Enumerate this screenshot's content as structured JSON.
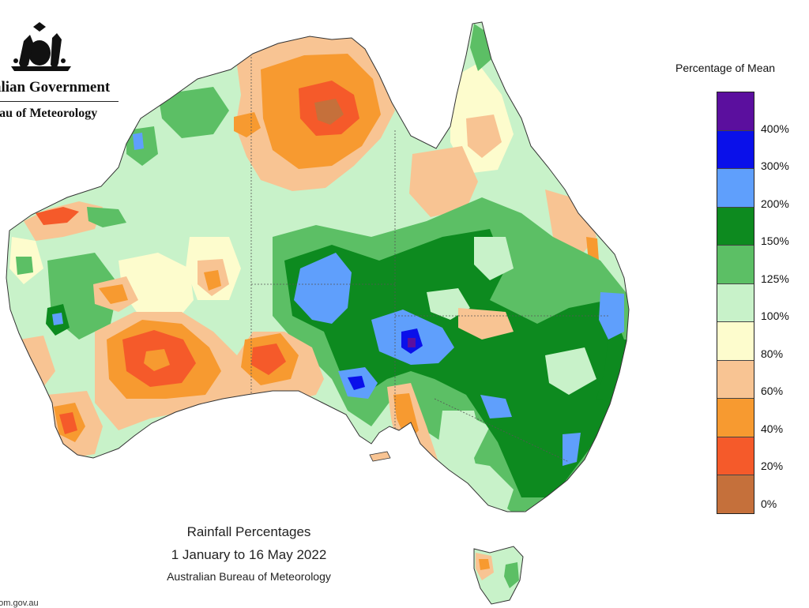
{
  "header": {
    "logo_icon": "australian-coat-of-arms-icon",
    "org_line1": "alian Government",
    "org_line2": "eau of Meteorology"
  },
  "legend": {
    "title": "Percentage of Mean",
    "colors": [
      "#5b0f9e",
      "#0a10ea",
      "#5f9ffc",
      "#0d8a1f",
      "#5cbf65",
      "#c8f2c9",
      "#fdfccd",
      "#f8c493",
      "#f79a30",
      "#f55a2a",
      "#c5703b"
    ],
    "labels": [
      "400%",
      "300%",
      "200%",
      "150%",
      "125%",
      "100%",
      "80%",
      "60%",
      "40%",
      "20%",
      "0%"
    ]
  },
  "caption": {
    "title": "Rainfall Percentages",
    "dates": "1 January to 16 May 2022",
    "source": "Australian Bureau of Meteorology"
  },
  "footer": {
    "url": "bom.gov.au"
  }
}
